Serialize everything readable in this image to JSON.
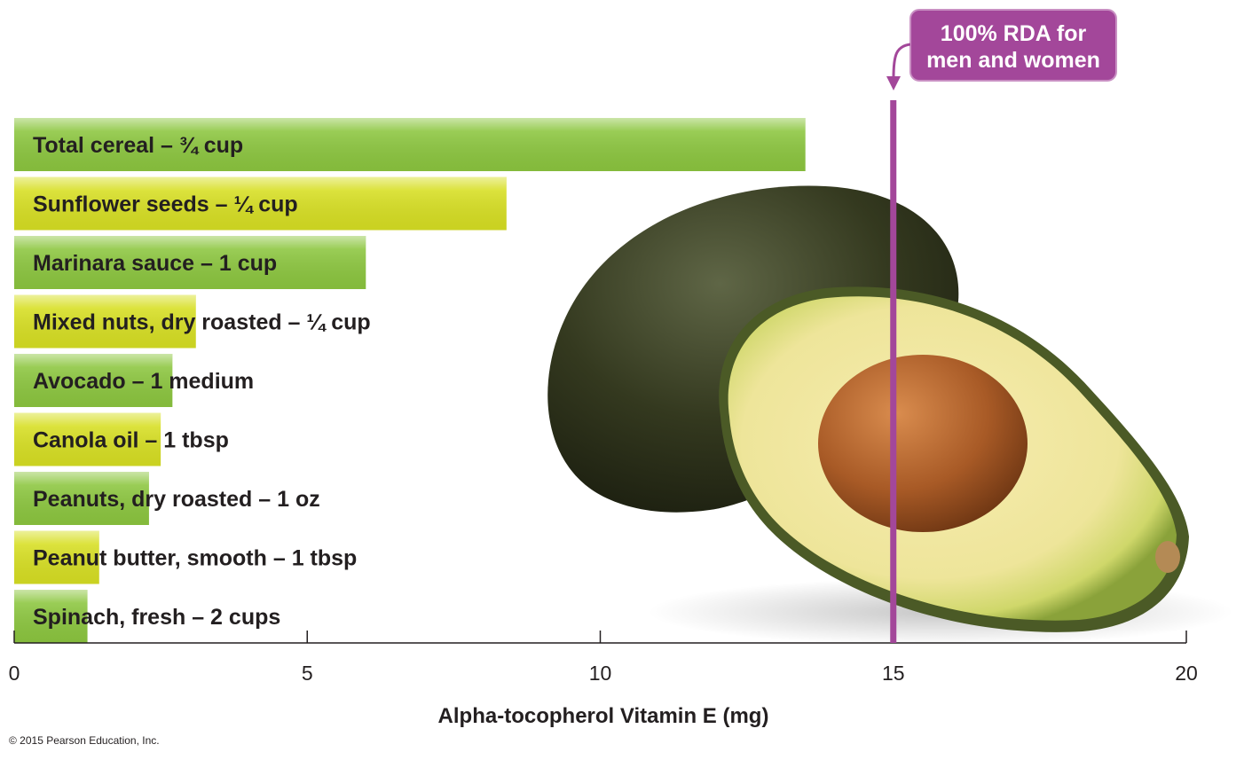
{
  "chart_data": {
    "type": "bar",
    "orientation": "horizontal",
    "categories": [
      "Total cereal – ¾ cup",
      "Sunflower seeds – ¼ cup",
      "Marinara sauce – 1 cup",
      "Mixed nuts, dry roasted – ¼ cup",
      "Avocado – 1 medium",
      "Canola oil – 1 tbsp",
      "Peanuts, dry roasted – 1 oz",
      "Peanut butter, smooth – 1 tbsp",
      "Spinach, fresh – 2 cups"
    ],
    "values": [
      13.5,
      8.4,
      6.0,
      3.1,
      2.7,
      2.5,
      2.3,
      1.45,
      1.25
    ],
    "bar_colors": [
      "#8cc63f",
      "#d7df23",
      "#8cc63f",
      "#d7df23",
      "#8cc63f",
      "#d7df23",
      "#8cc63f",
      "#d7df23",
      "#8cc63f"
    ],
    "xlabel": "Alpha-tocopherol Vitamin E (mg)",
    "xlim": [
      0,
      20
    ],
    "xticks": [
      "0",
      "5",
      "10",
      "15",
      "20"
    ],
    "reference_line": {
      "value": 15,
      "label": [
        "100% RDA for",
        "men and women"
      ],
      "color": "#a3479a"
    },
    "grid": false
  },
  "credit": "© 2015 Pearson Education, Inc."
}
